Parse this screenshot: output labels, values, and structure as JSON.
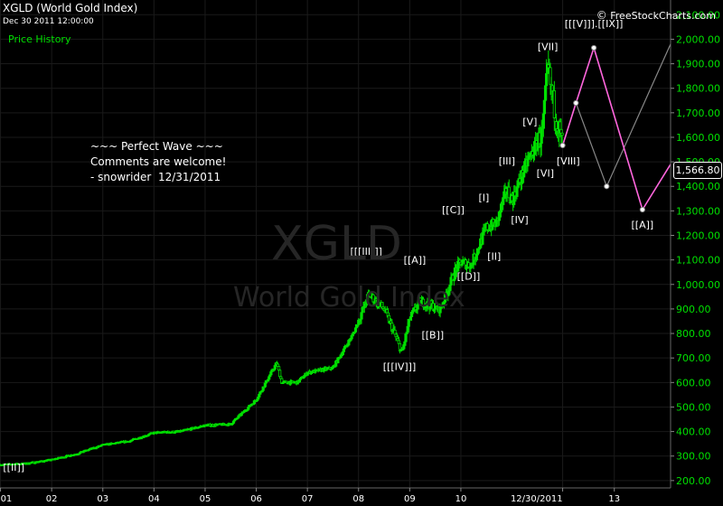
{
  "header": {
    "title": "XGLD (World Gold Index)",
    "datetime": "Dec 30 2011 12:00:00",
    "legend": "Price History",
    "brand": "FreeStockCharts.com",
    "brand_symbol": "©"
  },
  "watermark": {
    "symbol": "XGLD",
    "name": "World Gold Index"
  },
  "comment": [
    "~~~ Perfect Wave ~~~",
    "Comments are welcome!",
    "- snowrider  12/31/2011"
  ],
  "colors": {
    "background": "#000000",
    "candles": "#00e000",
    "projection": "#ff66dd",
    "alt_projection": "#888888",
    "text": "#ffffff"
  },
  "chart_data": {
    "type": "candlestick",
    "title": "XGLD (World Gold Index)",
    "y_axis": {
      "side": "right",
      "ticks": [
        "200.00",
        "300.00",
        "400.00",
        "500.00",
        "600.00",
        "700.00",
        "800.00",
        "900.00",
        "1,000.00",
        "1,100.00",
        "1,200.00",
        "1,300.00",
        "1,400.00",
        "1,500.00",
        "1,600.00",
        "1,700.00",
        "1,800.00",
        "1,900.00",
        "2,000.00",
        "2,100.00"
      ],
      "ylim": [
        170,
        2160
      ]
    },
    "x_axis": {
      "ticks": [
        "01",
        "02",
        "03",
        "04",
        "05",
        "06",
        "07",
        "08",
        "09",
        "10",
        "12/30/2011",
        "13"
      ],
      "tick_years": [
        2001,
        2002,
        2003,
        2004,
        2005,
        2006,
        2007,
        2008,
        2009,
        2010,
        2011.99,
        2013
      ],
      "xlim": [
        2000.99,
        2014.1
      ]
    },
    "last_price": "1,566.80",
    "last_value": 1566.8,
    "price_path": [
      [
        2001.0,
        265
      ],
      [
        2001.5,
        270
      ],
      [
        2002.0,
        285
      ],
      [
        2002.5,
        310
      ],
      [
        2003.0,
        345
      ],
      [
        2003.5,
        360
      ],
      [
        2004.0,
        395
      ],
      [
        2004.5,
        400
      ],
      [
        2005.0,
        425
      ],
      [
        2005.5,
        430
      ],
      [
        2006.0,
        530
      ],
      [
        2006.4,
        680
      ],
      [
        2006.5,
        600
      ],
      [
        2006.8,
        600
      ],
      [
        2007.0,
        640
      ],
      [
        2007.5,
        660
      ],
      [
        2007.9,
        800
      ],
      [
        2008.2,
        960
      ],
      [
        2008.5,
        900
      ],
      [
        2008.7,
        800
      ],
      [
        2008.85,
        720
      ],
      [
        2009.0,
        860
      ],
      [
        2009.2,
        930
      ],
      [
        2009.6,
        900
      ],
      [
        2009.9,
        1060
      ],
      [
        2010.0,
        1090
      ],
      [
        2010.2,
        1080
      ],
      [
        2010.5,
        1230
      ],
      [
        2010.7,
        1250
      ],
      [
        2010.9,
        1390
      ],
      [
        2011.0,
        1340
      ],
      [
        2011.3,
        1500
      ],
      [
        2011.6,
        1620
      ],
      [
        2011.7,
        1880
      ],
      [
        2011.8,
        1750
      ],
      [
        2011.9,
        1650
      ],
      [
        2011.99,
        1567
      ]
    ],
    "projection_main": [
      [
        2011.99,
        1567
      ],
      [
        2012.25,
        1740
      ],
      [
        2012.6,
        1965
      ],
      [
        2013.55,
        1305
      ],
      [
        2014.1,
        1490
      ]
    ],
    "projection_alt": [
      [
        2011.99,
        1567
      ],
      [
        2012.25,
        1740
      ],
      [
        2012.85,
        1400
      ],
      [
        2014.1,
        1980
      ]
    ],
    "wave_labels": [
      {
        "text": "[[II]]",
        "x": 2001.05,
        "y": 240
      },
      {
        "text": "[[[III]]]",
        "x": 2008.15,
        "y": 1120
      },
      {
        "text": "[[[IV]]]",
        "x": 2008.8,
        "y": 650
      },
      {
        "text": "[[A]]",
        "x": 2009.1,
        "y": 1085
      },
      {
        "text": "[[B]]",
        "x": 2009.45,
        "y": 780
      },
      {
        "text": "[[C]]",
        "x": 2009.85,
        "y": 1290
      },
      {
        "text": "[[D]]",
        "x": 2010.15,
        "y": 1020
      },
      {
        "text": "[I]",
        "x": 2010.45,
        "y": 1340
      },
      {
        "text": "[II]",
        "x": 2010.65,
        "y": 1100
      },
      {
        "text": "[III]",
        "x": 2010.9,
        "y": 1490
      },
      {
        "text": "[IV]",
        "x": 2011.15,
        "y": 1250
      },
      {
        "text": "[V]",
        "x": 2011.35,
        "y": 1650
      },
      {
        "text": "[VI]",
        "x": 2011.65,
        "y": 1440
      },
      {
        "text": "[VII]",
        "x": 2011.7,
        "y": 1955
      },
      {
        "text": "[VIII]",
        "x": 2012.1,
        "y": 1490
      },
      {
        "text": "[[[V]]].[[IX]]",
        "x": 2012.6,
        "y": 2050
      },
      {
        "text": "[[A]]",
        "x": 2013.55,
        "y": 1230
      }
    ]
  }
}
